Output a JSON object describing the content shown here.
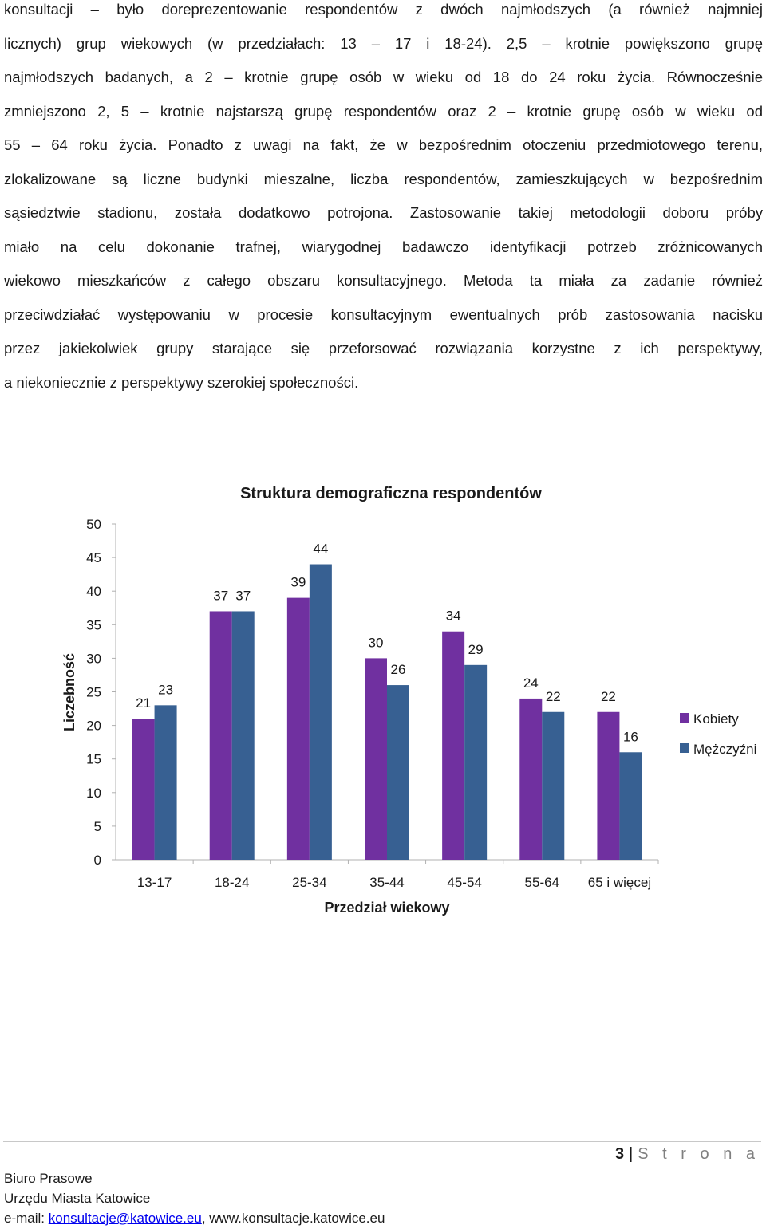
{
  "body_text": {
    "lines": [
      "konsultacji –   było doreprezentowanie respondentów z dwóch najmłodszych (a również najmniej",
      "licznych) grup wiekowych (w przedziałach: 13 – 17 i 18-24). 2,5 – krotnie powiększono grupę",
      "najmłodszych badanych, a 2 – krotnie grupę osób w wieku od 18 do 24 roku życia. Równocześnie",
      "zmniejszono 2, 5 – krotnie najstarszą grupę respondentów oraz 2 – krotnie grupę osób w wieku od",
      "55 – 64 roku życia. Ponadto z uwagi na fakt, że w bezpośrednim otoczeniu przedmiotowego terenu,",
      "zlokalizowane są liczne budynki mieszalne, liczba respondentów, zamieszkujących w bezpośrednim",
      "sąsiedztwie stadionu, została dodatkowo potrojona. Zastosowanie takiej metodologii doboru próby",
      "miało na celu dokonanie trafnej, wiarygodnej badawczo identyfikacji potrzeb zróżnicowanych",
      "wiekowo mieszkańców z całego obszaru konsultacyjnego. Metoda ta miała za zadanie również",
      "przeciwdziałać występowaniu w procesie konsultacyjnym ewentualnych prób zastosowania nacisku",
      "przez jakiekolwiek grupy starające się przeforsować rozwiązania korzystne z ich perspektywy,",
      "a niekoniecznie z perspektywy szerokiej społeczności."
    ]
  },
  "chart_data": {
    "type": "bar",
    "title": "Struktura demograficzna respondentów",
    "xlabel": "Przedział wiekowy",
    "ylabel": "Liczebność",
    "ylim": [
      0,
      50
    ],
    "yticks": [
      "0",
      "5",
      "10",
      "15",
      "20",
      "25",
      "30",
      "35",
      "40",
      "45",
      "50"
    ],
    "categories": [
      "13-17",
      "18-24",
      "25-34",
      "35-44",
      "45-54",
      "55-64",
      "65 i więcej"
    ],
    "series": [
      {
        "name": "Kobiety",
        "color": "#7030a0",
        "values": [
          21,
          37,
          39,
          30,
          34,
          24,
          22
        ]
      },
      {
        "name": "Mężczyźni",
        "color": "#376092",
        "values": [
          23,
          37,
          44,
          26,
          29,
          22,
          16
        ]
      }
    ],
    "legend": "right",
    "grid": false
  },
  "footer": {
    "page_number": "3",
    "separator": "|",
    "page_word": "S t r o n a",
    "org_line1": "Biuro Prasowe",
    "org_line2": "Urzędu Miasta Katowice",
    "email_prefix": "e-mail: ",
    "email": "konsultacje@katowice.eu",
    "website_sep": ", ",
    "website": "www.konsultacje.katowice.eu"
  }
}
